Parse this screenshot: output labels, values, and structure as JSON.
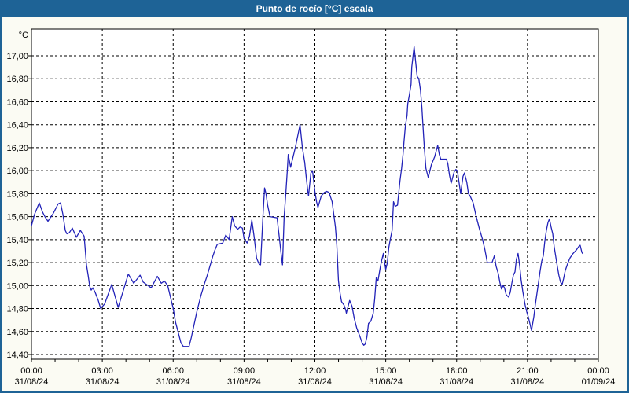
{
  "window": {
    "title": "Punto de rocío [°C] escala"
  },
  "colors": {
    "titlebar_bg": "#1e6396",
    "frame": "#1e6396",
    "content_bg": "#fbfbf3",
    "plot_bg": "#ffffff",
    "line": "#2222b8",
    "grid": "#000000",
    "axis": "#000000",
    "text": "#000000",
    "title_text": "#ffffff"
  },
  "chart_data": {
    "type": "line",
    "title": "Punto de rocío [°C] escala",
    "y_unit": "°C",
    "grid": "dashed",
    "legend": "none",
    "xlim_hours": [
      0,
      24
    ],
    "ylim": [
      14.36,
      17.23
    ],
    "x_minor_tick_every_hours": 1,
    "y_ticks": [
      {
        "value": 17.0,
        "label": "17,00"
      },
      {
        "value": 16.8,
        "label": "16,80"
      },
      {
        "value": 16.6,
        "label": "16,60"
      },
      {
        "value": 16.4,
        "label": "16,40"
      },
      {
        "value": 16.2,
        "label": "16,20"
      },
      {
        "value": 16.0,
        "label": "16,00"
      },
      {
        "value": 15.8,
        "label": "15,80"
      },
      {
        "value": 15.6,
        "label": "15,60"
      },
      {
        "value": 15.4,
        "label": "15,40"
      },
      {
        "value": 15.2,
        "label": "15,20"
      },
      {
        "value": 15.0,
        "label": "15,00"
      },
      {
        "value": 14.8,
        "label": "14,80"
      },
      {
        "value": 14.6,
        "label": "14,60"
      },
      {
        "value": 14.4,
        "label": "14,40"
      }
    ],
    "x_ticks": [
      {
        "hour": 0,
        "time": "00:00",
        "date": "31/08/24"
      },
      {
        "hour": 3,
        "time": "03:00",
        "date": "31/08/24"
      },
      {
        "hour": 6,
        "time": "06:00",
        "date": "31/08/24"
      },
      {
        "hour": 9,
        "time": "09:00",
        "date": "31/08/24"
      },
      {
        "hour": 12,
        "time": "12:00",
        "date": "31/08/24"
      },
      {
        "hour": 15,
        "time": "15:00",
        "date": "31/08/24"
      },
      {
        "hour": 18,
        "time": "18:00",
        "date": "31/08/24"
      },
      {
        "hour": 21,
        "time": "21:00",
        "date": "31/08/24"
      },
      {
        "hour": 24,
        "time": "00:00",
        "date": "01/09/24"
      }
    ],
    "series": [
      {
        "name": "Punto de rocío",
        "color": "#2222b8",
        "points": [
          [
            0.0,
            15.52
          ],
          [
            0.13,
            15.62
          ],
          [
            0.33,
            15.72
          ],
          [
            0.47,
            15.64
          ],
          [
            0.57,
            15.6
          ],
          [
            0.7,
            15.56
          ],
          [
            0.93,
            15.63
          ],
          [
            1.13,
            15.71
          ],
          [
            1.23,
            15.72
          ],
          [
            1.33,
            15.62
          ],
          [
            1.43,
            15.48
          ],
          [
            1.5,
            15.45
          ],
          [
            1.6,
            15.46
          ],
          [
            1.73,
            15.5
          ],
          [
            1.9,
            15.42
          ],
          [
            2.07,
            15.48
          ],
          [
            2.23,
            15.43
          ],
          [
            2.33,
            15.18
          ],
          [
            2.4,
            15.09
          ],
          [
            2.47,
            14.99
          ],
          [
            2.53,
            14.96
          ],
          [
            2.6,
            14.98
          ],
          [
            2.7,
            14.94
          ],
          [
            2.83,
            14.87
          ],
          [
            2.93,
            14.8
          ],
          [
            3.1,
            14.84
          ],
          [
            3.4,
            15.01
          ],
          [
            3.67,
            14.81
          ],
          [
            4.1,
            15.1
          ],
          [
            4.33,
            15.02
          ],
          [
            4.6,
            15.09
          ],
          [
            4.73,
            15.03
          ],
          [
            5.07,
            14.98
          ],
          [
            5.33,
            15.08
          ],
          [
            5.5,
            15.02
          ],
          [
            5.63,
            15.04
          ],
          [
            5.77,
            15.0
          ],
          [
            6.0,
            14.8
          ],
          [
            6.1,
            14.68
          ],
          [
            6.33,
            14.5
          ],
          [
            6.43,
            14.47
          ],
          [
            6.67,
            14.47
          ],
          [
            6.77,
            14.55
          ],
          [
            7.0,
            14.77
          ],
          [
            7.17,
            14.91
          ],
          [
            7.33,
            15.02
          ],
          [
            7.43,
            15.08
          ],
          [
            7.53,
            15.15
          ],
          [
            7.67,
            15.25
          ],
          [
            7.77,
            15.31
          ],
          [
            7.87,
            15.36
          ],
          [
            8.1,
            15.37
          ],
          [
            8.23,
            15.44
          ],
          [
            8.37,
            15.4
          ],
          [
            8.5,
            15.6
          ],
          [
            8.6,
            15.52
          ],
          [
            8.73,
            15.49
          ],
          [
            8.83,
            15.51
          ],
          [
            8.93,
            15.5
          ],
          [
            9.0,
            15.41
          ],
          [
            9.13,
            15.37
          ],
          [
            9.23,
            15.43
          ],
          [
            9.33,
            15.57
          ],
          [
            9.43,
            15.42
          ],
          [
            9.53,
            15.24
          ],
          [
            9.63,
            15.19
          ],
          [
            9.7,
            15.18
          ],
          [
            9.8,
            15.6
          ],
          [
            9.87,
            15.85
          ],
          [
            9.93,
            15.8
          ],
          [
            10.0,
            15.7
          ],
          [
            10.1,
            15.6
          ],
          [
            10.4,
            15.59
          ],
          [
            10.5,
            15.41
          ],
          [
            10.57,
            15.28
          ],
          [
            10.63,
            15.18
          ],
          [
            10.7,
            15.6
          ],
          [
            10.77,
            15.8
          ],
          [
            10.83,
            16.0
          ],
          [
            10.87,
            16.14
          ],
          [
            10.97,
            16.03
          ],
          [
            11.17,
            16.2
          ],
          [
            11.27,
            16.3
          ],
          [
            11.37,
            16.4
          ],
          [
            11.47,
            16.2
          ],
          [
            11.57,
            16.07
          ],
          [
            11.63,
            15.95
          ],
          [
            11.7,
            15.82
          ],
          [
            11.73,
            15.78
          ],
          [
            11.83,
            15.98
          ],
          [
            11.9,
            16.0
          ],
          [
            12.0,
            15.82
          ],
          [
            12.07,
            15.73
          ],
          [
            12.13,
            15.68
          ],
          [
            12.27,
            15.78
          ],
          [
            12.4,
            15.81
          ],
          [
            12.5,
            15.82
          ],
          [
            12.6,
            15.81
          ],
          [
            12.73,
            15.73
          ],
          [
            12.8,
            15.62
          ],
          [
            12.87,
            15.51
          ],
          [
            12.93,
            15.35
          ],
          [
            13.0,
            15.04
          ],
          [
            13.07,
            14.93
          ],
          [
            13.13,
            14.86
          ],
          [
            13.23,
            14.83
          ],
          [
            13.3,
            14.79
          ],
          [
            13.33,
            14.76
          ],
          [
            13.47,
            14.87
          ],
          [
            13.57,
            14.82
          ],
          [
            13.67,
            14.71
          ],
          [
            13.77,
            14.63
          ],
          [
            13.9,
            14.56
          ],
          [
            14.0,
            14.5
          ],
          [
            14.07,
            14.48
          ],
          [
            14.13,
            14.49
          ],
          [
            14.2,
            14.55
          ],
          [
            14.27,
            14.67
          ],
          [
            14.37,
            14.69
          ],
          [
            14.47,
            14.76
          ],
          [
            14.53,
            14.88
          ],
          [
            14.6,
            15.07
          ],
          [
            14.67,
            15.04
          ],
          [
            14.77,
            15.16
          ],
          [
            14.83,
            15.22
          ],
          [
            14.9,
            15.28
          ],
          [
            14.97,
            15.18
          ],
          [
            15.0,
            15.14
          ],
          [
            15.07,
            15.2
          ],
          [
            15.13,
            15.33
          ],
          [
            15.2,
            15.41
          ],
          [
            15.27,
            15.48
          ],
          [
            15.33,
            15.73
          ],
          [
            15.4,
            15.69
          ],
          [
            15.5,
            15.7
          ],
          [
            15.6,
            15.91
          ],
          [
            15.67,
            16.02
          ],
          [
            15.73,
            16.14
          ],
          [
            15.77,
            16.25
          ],
          [
            15.83,
            16.39
          ],
          [
            15.9,
            16.48
          ],
          [
            15.93,
            16.58
          ],
          [
            16.0,
            16.66
          ],
          [
            16.07,
            16.75
          ],
          [
            16.1,
            16.9
          ],
          [
            16.2,
            17.08
          ],
          [
            16.27,
            16.94
          ],
          [
            16.33,
            16.82
          ],
          [
            16.4,
            16.8
          ],
          [
            16.47,
            16.7
          ],
          [
            16.53,
            16.55
          ],
          [
            16.57,
            16.41
          ],
          [
            16.63,
            16.21
          ],
          [
            16.7,
            16.02
          ],
          [
            16.8,
            15.94
          ],
          [
            16.93,
            16.05
          ],
          [
            17.07,
            16.12
          ],
          [
            17.2,
            16.22
          ],
          [
            17.27,
            16.14
          ],
          [
            17.33,
            16.1
          ],
          [
            17.57,
            16.1
          ],
          [
            17.63,
            16.06
          ],
          [
            17.7,
            15.96
          ],
          [
            17.77,
            15.89
          ],
          [
            17.9,
            15.99
          ],
          [
            17.97,
            16.01
          ],
          [
            18.03,
            16.0
          ],
          [
            18.1,
            15.9
          ],
          [
            18.17,
            15.8
          ],
          [
            18.27,
            15.95
          ],
          [
            18.33,
            15.98
          ],
          [
            18.43,
            15.9
          ],
          [
            18.5,
            15.8
          ],
          [
            18.57,
            15.78
          ],
          [
            18.7,
            15.72
          ],
          [
            18.83,
            15.6
          ],
          [
            18.97,
            15.49
          ],
          [
            19.1,
            15.4
          ],
          [
            19.2,
            15.31
          ],
          [
            19.3,
            15.2
          ],
          [
            19.5,
            15.2
          ],
          [
            19.6,
            15.26
          ],
          [
            19.67,
            15.17
          ],
          [
            19.77,
            15.1
          ],
          [
            19.83,
            15.03
          ],
          [
            19.9,
            14.97
          ],
          [
            19.97,
            15.0
          ],
          [
            20.03,
            14.98
          ],
          [
            20.1,
            14.92
          ],
          [
            20.2,
            14.9
          ],
          [
            20.27,
            14.94
          ],
          [
            20.33,
            15.01
          ],
          [
            20.4,
            15.09
          ],
          [
            20.47,
            15.12
          ],
          [
            20.53,
            15.23
          ],
          [
            20.6,
            15.28
          ],
          [
            20.67,
            15.17
          ],
          [
            20.73,
            15.05
          ],
          [
            20.8,
            14.95
          ],
          [
            20.9,
            14.83
          ],
          [
            20.97,
            14.77
          ],
          [
            21.03,
            14.73
          ],
          [
            21.1,
            14.67
          ],
          [
            21.17,
            14.61
          ],
          [
            21.27,
            14.73
          ],
          [
            21.33,
            14.83
          ],
          [
            21.4,
            14.93
          ],
          [
            21.47,
            15.03
          ],
          [
            21.53,
            15.12
          ],
          [
            21.6,
            15.21
          ],
          [
            21.67,
            15.26
          ],
          [
            21.73,
            15.38
          ],
          [
            21.8,
            15.48
          ],
          [
            21.87,
            15.55
          ],
          [
            21.93,
            15.58
          ],
          [
            22.0,
            15.51
          ],
          [
            22.07,
            15.45
          ],
          [
            22.13,
            15.34
          ],
          [
            22.2,
            15.25
          ],
          [
            22.27,
            15.16
          ],
          [
            22.33,
            15.09
          ],
          [
            22.4,
            15.03
          ],
          [
            22.47,
            15.01
          ],
          [
            22.53,
            15.06
          ],
          [
            22.6,
            15.13
          ],
          [
            22.7,
            15.19
          ],
          [
            22.8,
            15.24
          ],
          [
            22.93,
            15.28
          ],
          [
            23.07,
            15.31
          ],
          [
            23.17,
            15.34
          ],
          [
            23.23,
            15.35
          ],
          [
            23.3,
            15.29
          ],
          [
            23.33,
            15.28
          ]
        ]
      }
    ]
  }
}
